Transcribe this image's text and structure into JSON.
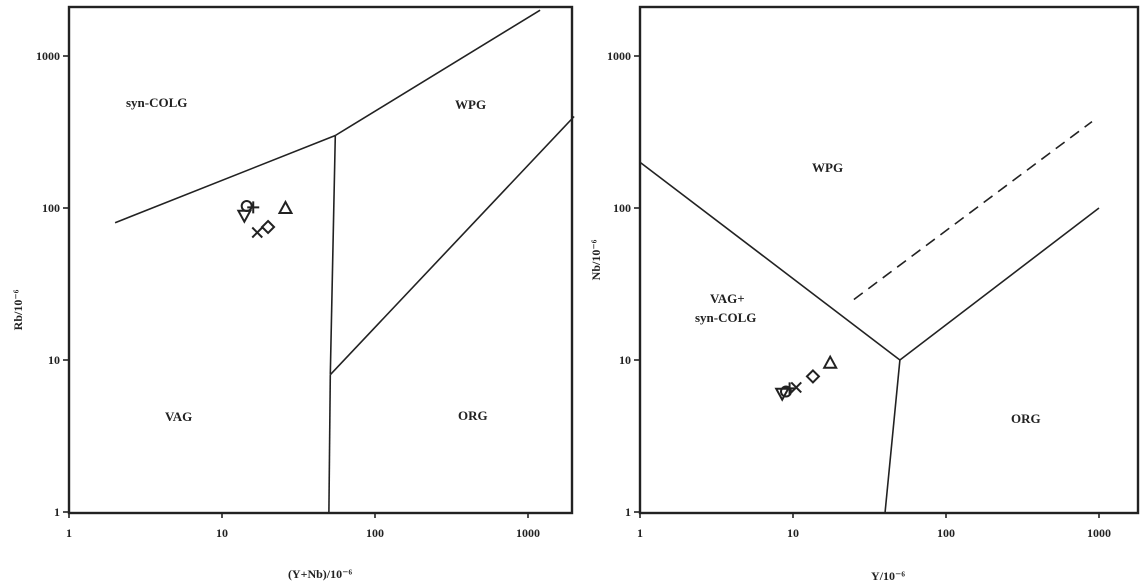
{
  "chart_data": [
    {
      "type": "scatter",
      "scale": "log-log",
      "xlabel": "(Y+Nb)/10⁻⁶",
      "ylabel": "Rb/10⁻⁶",
      "xlim": [
        1,
        2000
      ],
      "ylim": [
        1,
        2000
      ],
      "xticks": [
        "1",
        "10",
        "100",
        "1000"
      ],
      "yticks": [
        "1",
        "10",
        "100",
        "1000"
      ],
      "regions": [
        "syn-COLG",
        "WPG",
        "VAG",
        "ORG"
      ],
      "boundaries": [
        {
          "style": "solid",
          "points": [
            [
              2,
              80
            ],
            [
              55,
              300
            ]
          ]
        },
        {
          "style": "solid",
          "points": [
            [
              55,
              300
            ],
            [
              1200,
              2000
            ]
          ]
        },
        {
          "style": "solid",
          "points": [
            [
              55,
              300
            ],
            [
              51,
              8
            ]
          ]
        },
        {
          "style": "solid",
          "points": [
            [
              51,
              8
            ],
            [
              2000,
              400
            ]
          ]
        },
        {
          "style": "solid",
          "points": [
            [
              51,
              8
            ],
            [
              50,
              1
            ]
          ]
        }
      ],
      "points": [
        {
          "marker": "circle",
          "x": 14.5,
          "y": 103
        },
        {
          "marker": "plus",
          "x": 16,
          "y": 101
        },
        {
          "marker": "triangle-down",
          "x": 14,
          "y": 89
        },
        {
          "marker": "x",
          "x": 17,
          "y": 69
        },
        {
          "marker": "diamond",
          "x": 20,
          "y": 75
        },
        {
          "marker": "triangle-up",
          "x": 26,
          "y": 100
        }
      ]
    },
    {
      "type": "scatter",
      "scale": "log-log",
      "xlabel": "Y/10⁻⁶",
      "ylabel": "Nb/10⁻⁶",
      "xlim": [
        1,
        2000
      ],
      "ylim": [
        1,
        2000
      ],
      "xticks": [
        "1",
        "10",
        "100",
        "1000"
      ],
      "yticks": [
        "1",
        "10",
        "100",
        "1000"
      ],
      "regions": [
        "WPG",
        "VAG+",
        "syn-COLG",
        "ORG"
      ],
      "boundaries": [
        {
          "style": "solid",
          "points": [
            [
              1,
              200
            ],
            [
              50,
              10
            ]
          ]
        },
        {
          "style": "solid",
          "points": [
            [
              50,
              10
            ],
            [
              1000,
              100
            ]
          ]
        },
        {
          "style": "solid",
          "points": [
            [
              50,
              10
            ],
            [
              40,
              1
            ]
          ]
        },
        {
          "style": "dashed",
          "points": [
            [
              25,
              25
            ],
            [
              900,
              370
            ]
          ]
        }
      ],
      "points": [
        {
          "marker": "triangle-down",
          "x": 8.5,
          "y": 6
        },
        {
          "marker": "circle",
          "x": 9,
          "y": 6.2
        },
        {
          "marker": "plus",
          "x": 9.5,
          "y": 6.5
        },
        {
          "marker": "x",
          "x": 10.5,
          "y": 6.6
        },
        {
          "marker": "diamond",
          "x": 13.5,
          "y": 7.8
        },
        {
          "marker": "triangle-up",
          "x": 17.5,
          "y": 9.6
        }
      ]
    }
  ]
}
